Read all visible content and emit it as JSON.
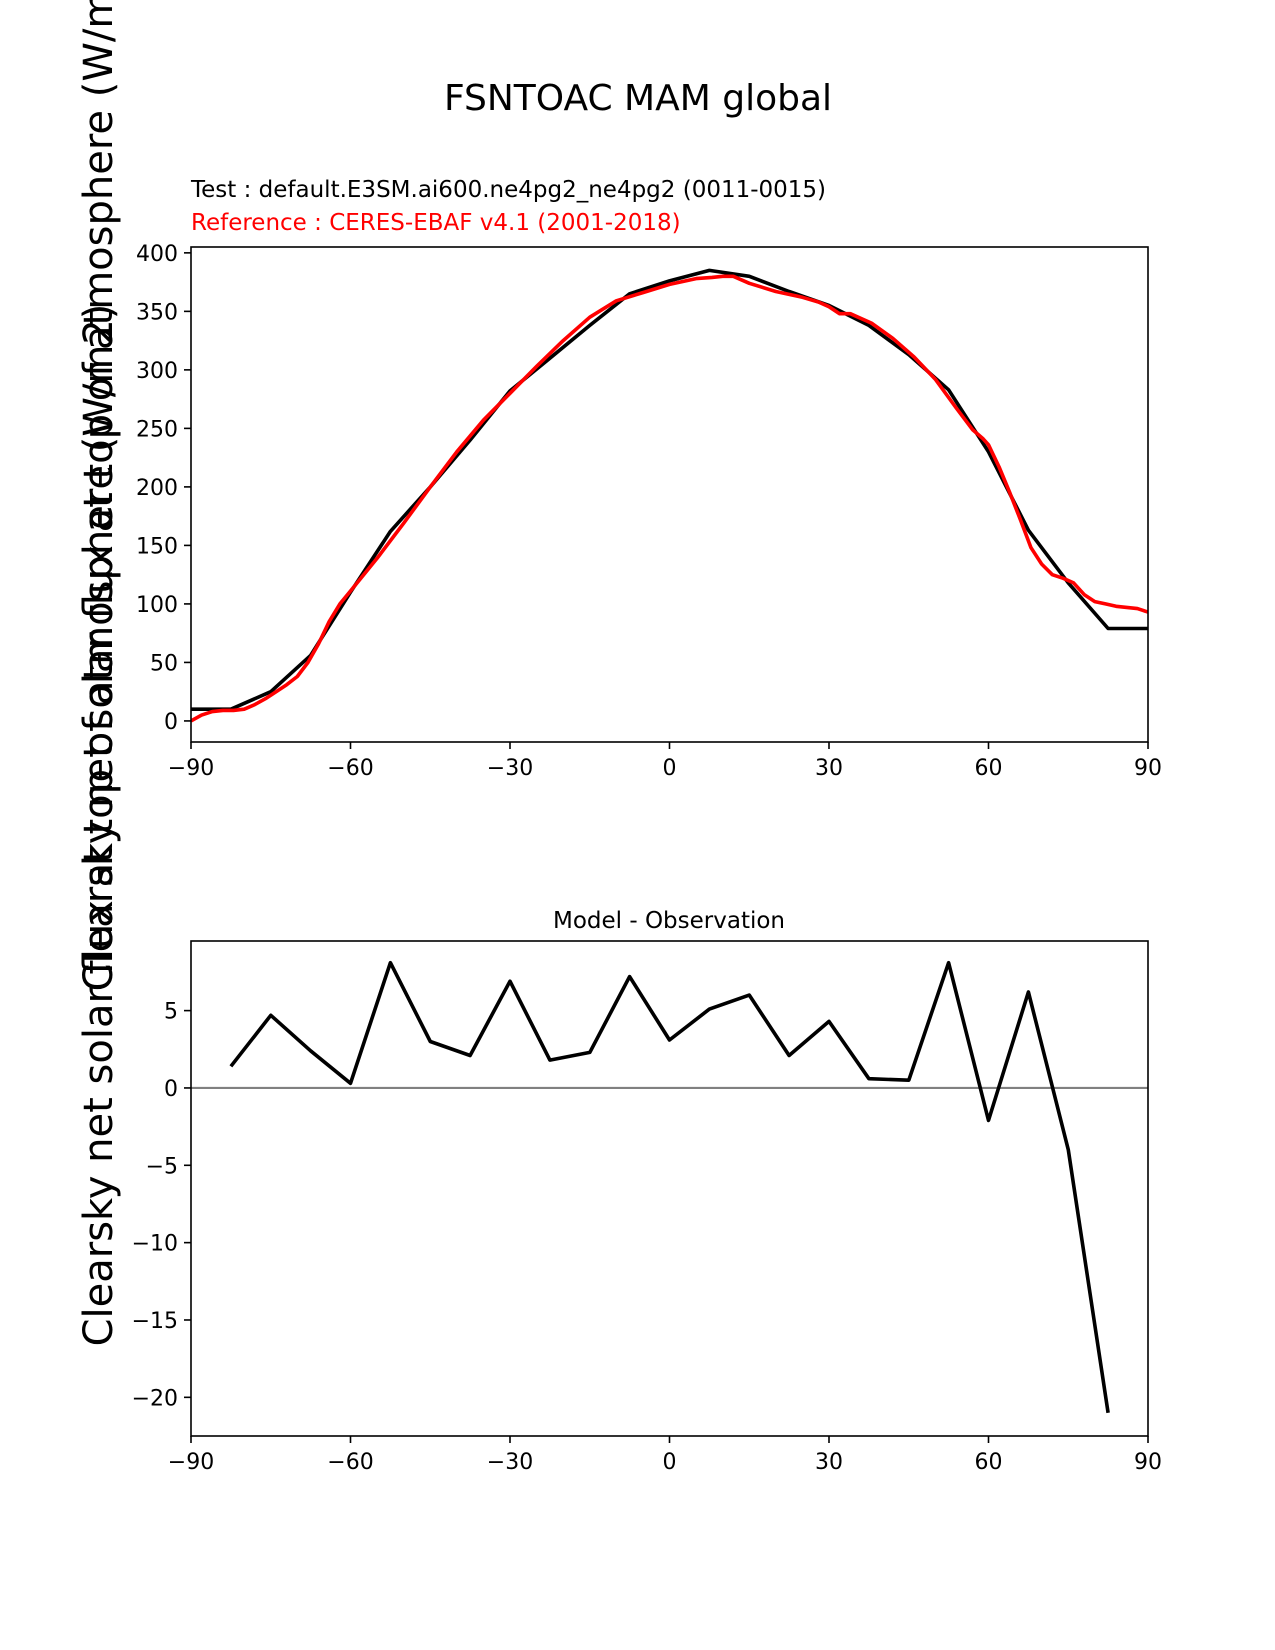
{
  "figure": {
    "title": "FSNTOAC MAM global",
    "ylabel_full": "Clearsky net solar flux at top of atmosphere (W/m2)"
  },
  "colors": {
    "test": "#000000",
    "reference": "#ff0000",
    "zero_line": "#808080",
    "axes": "#000000"
  },
  "chart_data": [
    {
      "type": "line",
      "name": "zonal-mean",
      "test_label": "Test : default.E3SM.ai600.ne4pg2_ne4pg2 (0011-0015)",
      "reference_label": "Reference : CERES-EBAF v4.1 (2001-2018)",
      "xlabel": "",
      "ylabel": "Clearsky net solar flux at top of atmosphere (W/m2)",
      "xlim": [
        -90,
        90
      ],
      "ylim": [
        -18,
        405
      ],
      "xticks": [
        -90,
        -60,
        -30,
        0,
        30,
        60,
        90
      ],
      "xtick_labels": [
        "−90",
        "−60",
        "−30",
        "0",
        "30",
        "60",
        "90"
      ],
      "yticks": [
        0,
        50,
        100,
        150,
        200,
        250,
        300,
        350,
        400
      ],
      "ytick_labels": [
        "0",
        "50",
        "100",
        "150",
        "200",
        "250",
        "300",
        "350",
        "400"
      ],
      "series": [
        {
          "name": "test",
          "x": [
            -90,
            -82.5,
            -75,
            -67.5,
            -60,
            -52.5,
            -45,
            -37.5,
            -30,
            -22.5,
            -15,
            -7.5,
            0,
            7.5,
            15,
            22.5,
            30,
            37.5,
            45,
            52.5,
            60,
            67.5,
            75,
            82.5,
            90
          ],
          "values": [
            10,
            10,
            25,
            56,
            110,
            162,
            200,
            240,
            282,
            310,
            338,
            365,
            376,
            385,
            380,
            367,
            355,
            338,
            313,
            283,
            230,
            163,
            118,
            79,
            79
          ]
        },
        {
          "name": "reference",
          "x": [
            -90,
            -88,
            -86,
            -84,
            -82,
            -80,
            -78,
            -76,
            -74,
            -72,
            -70,
            -68,
            -66,
            -64,
            -62,
            -60,
            -55,
            -50,
            -45,
            -40,
            -35,
            -30,
            -25,
            -20,
            -15,
            -10,
            -5,
            0,
            5,
            8,
            10,
            12,
            15,
            20,
            25,
            28,
            30,
            32,
            34,
            38,
            42,
            46,
            50,
            54,
            57,
            59,
            60,
            62,
            64,
            66,
            68,
            70,
            72,
            74,
            76,
            78,
            80,
            82,
            84,
            86,
            88,
            90
          ],
          "values": [
            0,
            5,
            8,
            9,
            9,
            10,
            14,
            19,
            25,
            31,
            38,
            50,
            66,
            85,
            100,
            111,
            139,
            169,
            200,
            230,
            257,
            280,
            303,
            325,
            345,
            359,
            366,
            373,
            378,
            379,
            380,
            380,
            374,
            367,
            362,
            358,
            354,
            348,
            348,
            340,
            327,
            311,
            292,
            267,
            249,
            241,
            236,
            217,
            195,
            172,
            148,
            134,
            125,
            122,
            118,
            108,
            102,
            100,
            98,
            97,
            96,
            93
          ]
        }
      ]
    },
    {
      "type": "line",
      "name": "difference",
      "title": "Model - Observation",
      "xlabel": "",
      "ylabel": "",
      "xlim": [
        -90,
        90
      ],
      "ylim": [
        -22.5,
        9.5
      ],
      "xticks": [
        -90,
        -60,
        -30,
        0,
        30,
        60,
        90
      ],
      "xtick_labels": [
        "−90",
        "−60",
        "−30",
        "0",
        "30",
        "60",
        "90"
      ],
      "yticks": [
        5,
        0,
        -5,
        -10,
        -15,
        -20
      ],
      "ytick_labels": [
        "5",
        "0",
        "−5",
        "−10",
        "−15",
        "−20"
      ],
      "zero_line": 0,
      "series": [
        {
          "name": "difference",
          "x": [
            -82.5,
            -75,
            -67.5,
            -60,
            -52.5,
            -45,
            -37.5,
            -30,
            -22.5,
            -15,
            -7.5,
            0,
            7.5,
            15,
            22.5,
            30,
            37.5,
            45,
            52.5,
            60,
            67.5,
            75,
            82.5
          ],
          "values": [
            1.4,
            4.7,
            2.4,
            0.3,
            8.1,
            3.0,
            2.1,
            6.9,
            1.8,
            2.3,
            7.2,
            3.1,
            5.1,
            6.0,
            2.1,
            4.3,
            0.6,
            0.5,
            8.1,
            -2.1,
            6.2,
            -4.0,
            -21.0
          ]
        }
      ]
    }
  ]
}
